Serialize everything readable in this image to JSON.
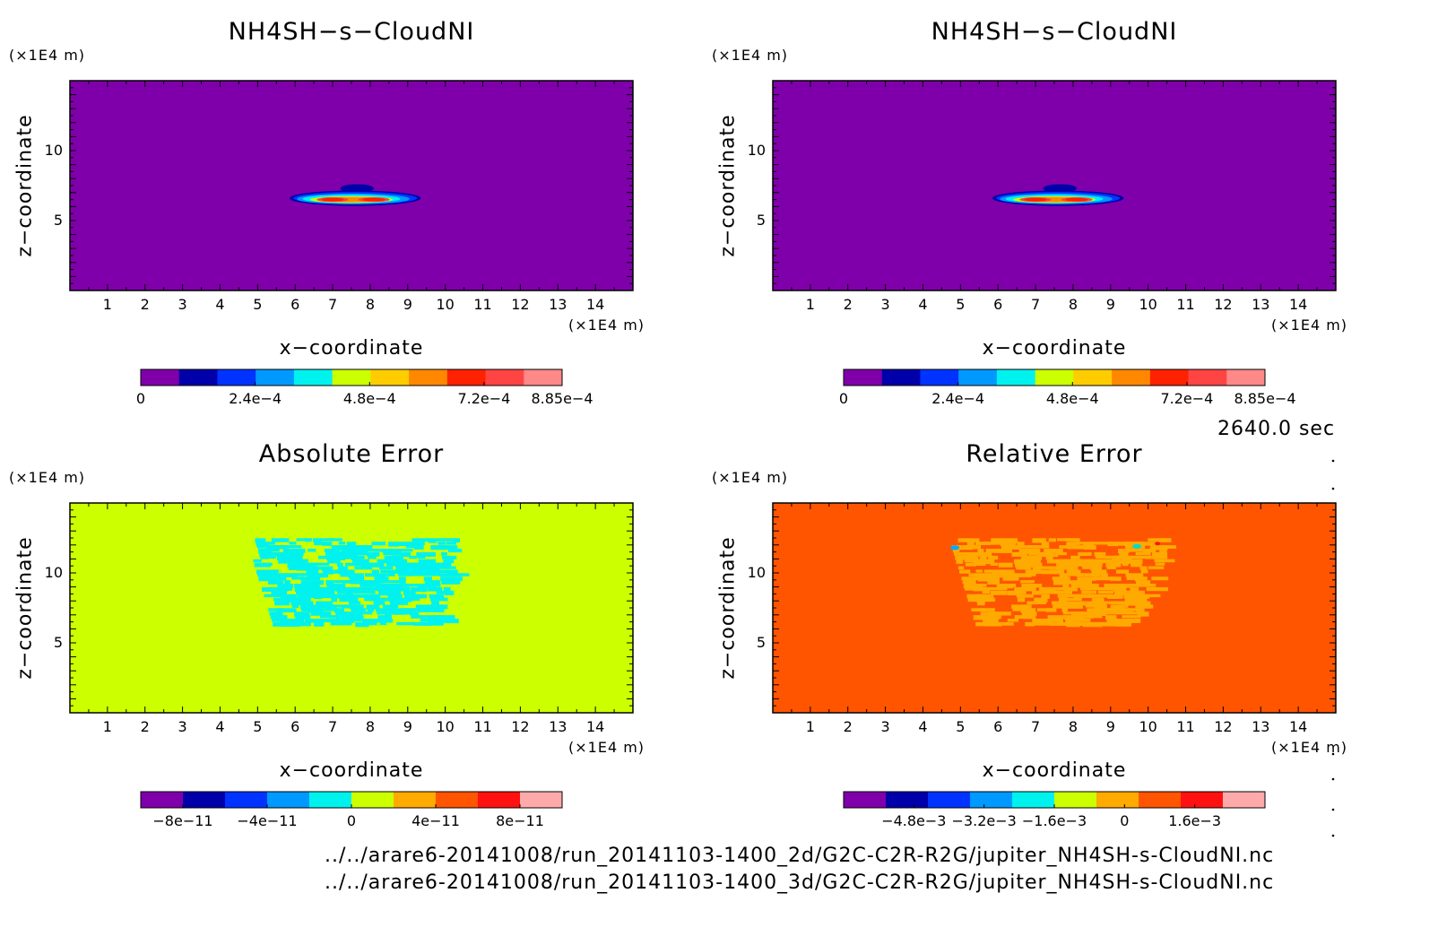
{
  "time_label": "2640.0 sec",
  "file_paths": [
    "../../arare6-20141008/run_20141103-1400_2d/G2C-C2R-R2G/jupiter_NH4SH-s-CloudNI.nc",
    "../../arare6-20141008/run_20141103-1400_3d/G2C-C2R-R2G/jupiter_NH4SH-s-CloudNI.nc"
  ],
  "colors": {
    "purple": "#7f00aa",
    "navy": "#0000aa",
    "blue": "#0033ff",
    "azure": "#0099ff",
    "cyan": "#00f2ee",
    "lime": "#ccff00",
    "orange": "#ffaa00",
    "redorange": "#ff5500",
    "red": "#ff1111",
    "pink": "#ffaaaa",
    "lightred": "#ff4444"
  },
  "chart_data": [
    {
      "type": "heatmap",
      "title": "NH4SH−s−CloudNI",
      "xlabel": "x−coordinate",
      "ylabel": "z−coordinate",
      "x_unit": "(×1E4 m)",
      "y_unit": "(×1E4 m)",
      "xlim": [
        0,
        15
      ],
      "ylim": [
        0,
        15
      ],
      "x_ticks": [
        "1",
        "2",
        "3",
        "4",
        "5",
        "6",
        "7",
        "8",
        "9",
        "10",
        "11",
        "12",
        "13",
        "14"
      ],
      "y_ticks": [
        "5",
        "10"
      ],
      "background": "purple",
      "feature": "cloud layer at z≈6.5, x≈6–9.5, maxima near x=7 and x=8",
      "colorbar": {
        "colors": [
          "#7f00aa",
          "#0000aa",
          "#0033ff",
          "#0099ff",
          "#00f2ee",
          "#ccff00",
          "#ffcc00",
          "#ff8800",
          "#ff2200",
          "#ff4444",
          "#ff8888"
        ],
        "labels": [
          "0",
          "2.4e−4",
          "4.8e−4",
          "7.2e−4",
          "8.85e−4"
        ],
        "values": [
          0,
          0.00024,
          0.00048,
          0.00072,
          0.000885
        ]
      }
    },
    {
      "type": "heatmap",
      "title": "NH4SH−s−CloudNI",
      "xlabel": "x−coordinate",
      "ylabel": "z−coordinate",
      "x_unit": "(×1E4 m)",
      "y_unit": "(×1E4 m)",
      "xlim": [
        0,
        15
      ],
      "ylim": [
        0,
        15
      ],
      "x_ticks": [
        "1",
        "2",
        "3",
        "4",
        "5",
        "6",
        "7",
        "8",
        "9",
        "10",
        "11",
        "12",
        "13",
        "14"
      ],
      "y_ticks": [
        "5",
        "10"
      ],
      "background": "purple",
      "feature": "cloud layer at z≈6.5, x≈6–9.5, maxima near x=7 and x=8",
      "colorbar": {
        "colors": [
          "#7f00aa",
          "#0000aa",
          "#0033ff",
          "#0099ff",
          "#00f2ee",
          "#ccff00",
          "#ffcc00",
          "#ff8800",
          "#ff2200",
          "#ff4444",
          "#ff8888"
        ],
        "labels": [
          "0",
          "2.4e−4",
          "4.8e−4",
          "7.2e−4",
          "8.85e−4"
        ],
        "values": [
          0,
          0.00024,
          0.00048,
          0.00072,
          0.000885
        ]
      }
    },
    {
      "type": "heatmap",
      "title": "Absolute Error",
      "xlabel": "x−coordinate",
      "ylabel": "z−coordinate",
      "x_unit": "(×1E4 m)",
      "y_unit": "(×1E4 m)",
      "xlim": [
        0,
        15
      ],
      "ylim": [
        0,
        15
      ],
      "x_ticks": [
        "1",
        "2",
        "3",
        "4",
        "5",
        "6",
        "7",
        "8",
        "9",
        "10",
        "11",
        "12",
        "13",
        "14"
      ],
      "y_ticks": [
        "5",
        "10"
      ],
      "background": "lime",
      "feature": "cyan patches in region x≈4.7–10.5, z≈6.2–12.5",
      "colorbar": {
        "colors": [
          "#7f00aa",
          "#0000aa",
          "#0033ff",
          "#0099ff",
          "#00f2ee",
          "#ccff00",
          "#ffaa00",
          "#ff5500",
          "#ff1111",
          "#ffaaaa"
        ],
        "labels": [
          "−8e−11",
          "−4e−11",
          "0",
          "4e−11",
          "8e−11"
        ],
        "values": [
          -8e-11,
          -4e-11,
          0,
          4e-11,
          8e-11
        ]
      }
    },
    {
      "type": "heatmap",
      "title": "Relative Error",
      "xlabel": "x−coordinate",
      "ylabel": "z−coordinate",
      "x_unit": "(×1E4 m)",
      "y_unit": "(×1E4 m)",
      "xlim": [
        0,
        15
      ],
      "ylim": [
        0,
        15
      ],
      "x_ticks": [
        "1",
        "2",
        "3",
        "4",
        "5",
        "6",
        "7",
        "8",
        "9",
        "10",
        "11",
        "12",
        "13",
        "14"
      ],
      "y_ticks": [
        "5",
        "10"
      ],
      "background": "redorange",
      "feature": "orange patches in region x≈4.7–10.5, z≈6.2–12.5",
      "colorbar": {
        "colors": [
          "#7f00aa",
          "#0000aa",
          "#0033ff",
          "#0099ff",
          "#00f2ee",
          "#ccff00",
          "#ffaa00",
          "#ff5500",
          "#ff1111",
          "#ffaaaa"
        ],
        "labels": [
          "−4.8e−3",
          "−3.2e−3",
          "−1.6e−3",
          "0",
          "1.6e−3"
        ],
        "values": [
          -0.0048,
          -0.0032,
          -0.0016,
          0,
          0.0016
        ]
      }
    }
  ]
}
